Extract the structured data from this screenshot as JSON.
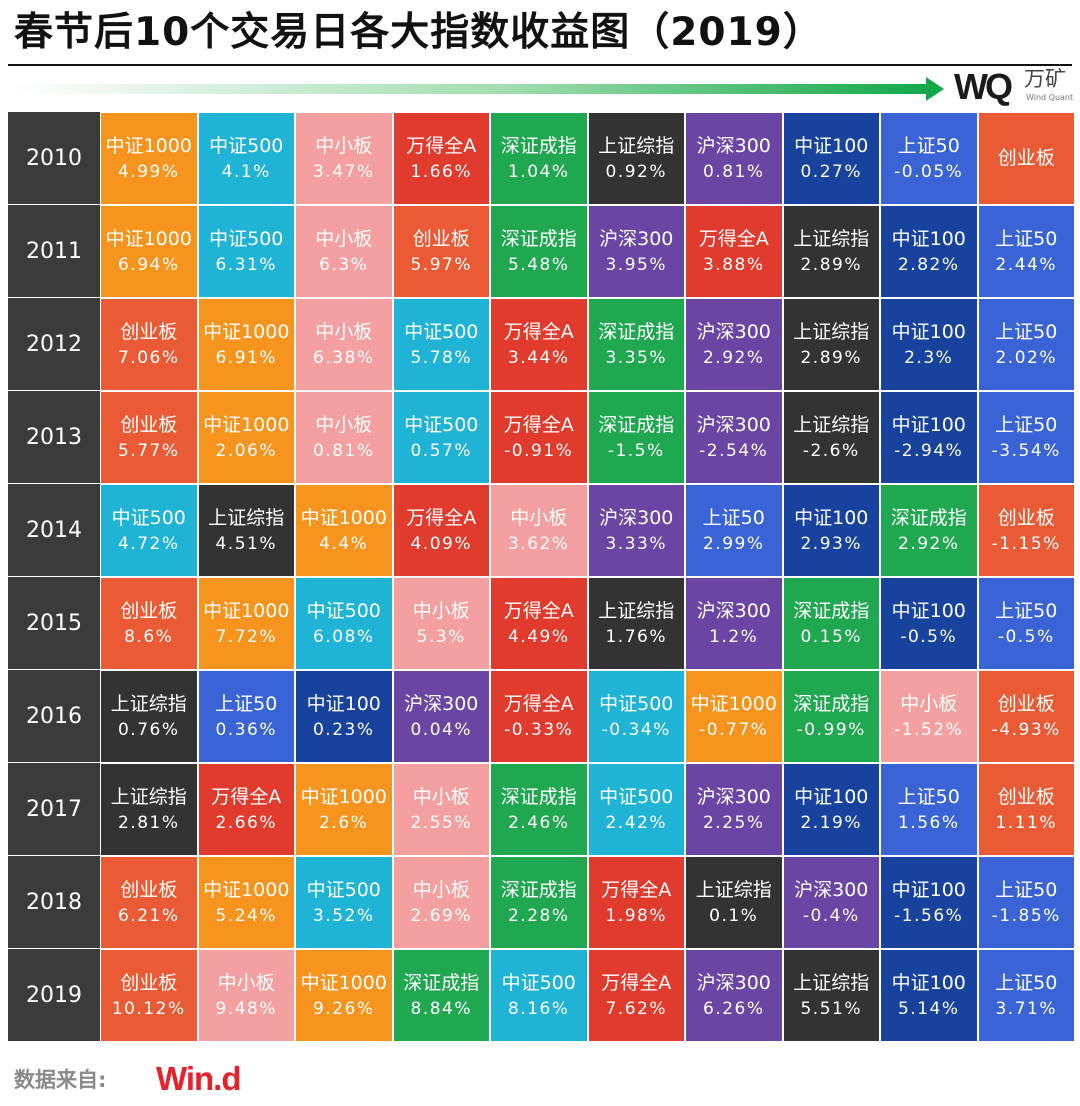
{
  "header": {
    "title": "春节后10个交易日各大指数收益图（2019）",
    "logo_mark": "WQ",
    "logo_cn": "万矿",
    "logo_en": "Wind Quant"
  },
  "footer": {
    "source_label": "数据来自:",
    "source_logo": "Win.d"
  },
  "colors": {
    "中证1000": "#f7941d",
    "中证500": "#1fb3d6",
    "中小板": "#f4a0a0",
    "万得全A": "#e13b2e",
    "深证成指": "#1fa84f",
    "上证综指": "#333333",
    "沪深300": "#6a45a3",
    "中证100": "#17429d",
    "上证50": "#3a64d6",
    "创业板": "#ea5b35",
    "year_bg": "#3b3b3b"
  },
  "chart_data": {
    "type": "table",
    "title": "春节后10个交易日各大指数收益图（2019）",
    "rows": [
      {
        "year": "2010",
        "cells": [
          {
            "name": "中证1000",
            "value": "4.99%"
          },
          {
            "name": "中证500",
            "value": "4.1%"
          },
          {
            "name": "中小板",
            "value": "3.47%"
          },
          {
            "name": "万得全A",
            "value": "1.66%"
          },
          {
            "name": "深证成指",
            "value": "1.04%"
          },
          {
            "name": "上证综指",
            "value": "0.92%"
          },
          {
            "name": "沪深300",
            "value": "0.81%"
          },
          {
            "name": "中证100",
            "value": "0.27%"
          },
          {
            "name": "上证50",
            "value": "-0.05%"
          },
          {
            "name": "创业板",
            "value": ""
          }
        ]
      },
      {
        "year": "2011",
        "cells": [
          {
            "name": "中证1000",
            "value": "6.94%"
          },
          {
            "name": "中证500",
            "value": "6.31%"
          },
          {
            "name": "中小板",
            "value": "6.3%"
          },
          {
            "name": "创业板",
            "value": "5.97%"
          },
          {
            "name": "深证成指",
            "value": "5.48%"
          },
          {
            "name": "沪深300",
            "value": "3.95%"
          },
          {
            "name": "万得全A",
            "value": "3.88%"
          },
          {
            "name": "上证综指",
            "value": "2.89%"
          },
          {
            "name": "中证100",
            "value": "2.82%"
          },
          {
            "name": "上证50",
            "value": "2.44%"
          }
        ]
      },
      {
        "year": "2012",
        "cells": [
          {
            "name": "创业板",
            "value": "7.06%"
          },
          {
            "name": "中证1000",
            "value": "6.91%"
          },
          {
            "name": "中小板",
            "value": "6.38%"
          },
          {
            "name": "中证500",
            "value": "5.78%"
          },
          {
            "name": "万得全A",
            "value": "3.44%"
          },
          {
            "name": "深证成指",
            "value": "3.35%"
          },
          {
            "name": "沪深300",
            "value": "2.92%"
          },
          {
            "name": "上证综指",
            "value": "2.89%"
          },
          {
            "name": "中证100",
            "value": "2.3%"
          },
          {
            "name": "上证50",
            "value": "2.02%"
          }
        ]
      },
      {
        "year": "2013",
        "cells": [
          {
            "name": "创业板",
            "value": "5.77%"
          },
          {
            "name": "中证1000",
            "value": "2.06%"
          },
          {
            "name": "中小板",
            "value": "0.81%"
          },
          {
            "name": "中证500",
            "value": "0.57%"
          },
          {
            "name": "万得全A",
            "value": "-0.91%"
          },
          {
            "name": "深证成指",
            "value": "-1.5%"
          },
          {
            "name": "沪深300",
            "value": "-2.54%"
          },
          {
            "name": "上证综指",
            "value": "-2.6%"
          },
          {
            "name": "中证100",
            "value": "-2.94%"
          },
          {
            "name": "上证50",
            "value": "-3.54%"
          }
        ]
      },
      {
        "year": "2014",
        "cells": [
          {
            "name": "中证500",
            "value": "4.72%"
          },
          {
            "name": "上证综指",
            "value": "4.51%"
          },
          {
            "name": "中证1000",
            "value": "4.4%"
          },
          {
            "name": "万得全A",
            "value": "4.09%"
          },
          {
            "name": "中小板",
            "value": "3.62%"
          },
          {
            "name": "沪深300",
            "value": "3.33%"
          },
          {
            "name": "上证50",
            "value": "2.99%"
          },
          {
            "name": "中证100",
            "value": "2.93%"
          },
          {
            "name": "深证成指",
            "value": "2.92%"
          },
          {
            "name": "创业板",
            "value": "-1.15%"
          }
        ]
      },
      {
        "year": "2015",
        "cells": [
          {
            "name": "创业板",
            "value": "8.6%"
          },
          {
            "name": "中证1000",
            "value": "7.72%"
          },
          {
            "name": "中证500",
            "value": "6.08%"
          },
          {
            "name": "中小板",
            "value": "5.3%"
          },
          {
            "name": "万得全A",
            "value": "4.49%"
          },
          {
            "name": "上证综指",
            "value": "1.76%"
          },
          {
            "name": "沪深300",
            "value": "1.2%"
          },
          {
            "name": "深证成指",
            "value": "0.15%"
          },
          {
            "name": "中证100",
            "value": "-0.5%"
          },
          {
            "name": "上证50",
            "value": "-0.5%"
          }
        ]
      },
      {
        "year": "2016",
        "cells": [
          {
            "name": "上证综指",
            "value": "0.76%"
          },
          {
            "name": "上证50",
            "value": "0.36%"
          },
          {
            "name": "中证100",
            "value": "0.23%"
          },
          {
            "name": "沪深300",
            "value": "0.04%"
          },
          {
            "name": "万得全A",
            "value": "-0.33%"
          },
          {
            "name": "中证500",
            "value": "-0.34%"
          },
          {
            "name": "中证1000",
            "value": "-0.77%"
          },
          {
            "name": "深证成指",
            "value": "-0.99%"
          },
          {
            "name": "中小板",
            "value": "-1.52%"
          },
          {
            "name": "创业板",
            "value": "-4.93%"
          }
        ]
      },
      {
        "year": "2017",
        "cells": [
          {
            "name": "上证综指",
            "value": "2.81%"
          },
          {
            "name": "万得全A",
            "value": "2.66%"
          },
          {
            "name": "中证1000",
            "value": "2.6%"
          },
          {
            "name": "中小板",
            "value": "2.55%"
          },
          {
            "name": "深证成指",
            "value": "2.46%"
          },
          {
            "name": "中证500",
            "value": "2.42%"
          },
          {
            "name": "沪深300",
            "value": "2.25%"
          },
          {
            "name": "中证100",
            "value": "2.19%"
          },
          {
            "name": "上证50",
            "value": "1.56%"
          },
          {
            "name": "创业板",
            "value": "1.11%"
          }
        ]
      },
      {
        "year": "2018",
        "cells": [
          {
            "name": "创业板",
            "value": "6.21%"
          },
          {
            "name": "中证1000",
            "value": "5.24%"
          },
          {
            "name": "中证500",
            "value": "3.52%"
          },
          {
            "name": "中小板",
            "value": "2.69%"
          },
          {
            "name": "深证成指",
            "value": "2.28%"
          },
          {
            "name": "万得全A",
            "value": "1.98%"
          },
          {
            "name": "上证综指",
            "value": "0.1%"
          },
          {
            "name": "沪深300",
            "value": "-0.4%"
          },
          {
            "name": "中证100",
            "value": "-1.56%"
          },
          {
            "name": "上证50",
            "value": "-1.85%"
          }
        ]
      },
      {
        "year": "2019",
        "cells": [
          {
            "name": "创业板",
            "value": "10.12%"
          },
          {
            "name": "中小板",
            "value": "9.48%"
          },
          {
            "name": "中证1000",
            "value": "9.26%"
          },
          {
            "name": "深证成指",
            "value": "8.84%"
          },
          {
            "name": "中证500",
            "value": "8.16%"
          },
          {
            "name": "万得全A",
            "value": "7.62%"
          },
          {
            "name": "沪深300",
            "value": "6.26%"
          },
          {
            "name": "上证综指",
            "value": "5.51%"
          },
          {
            "name": "中证100",
            "value": "5.14%"
          },
          {
            "name": "上证50",
            "value": "3.71%"
          }
        ]
      }
    ]
  }
}
